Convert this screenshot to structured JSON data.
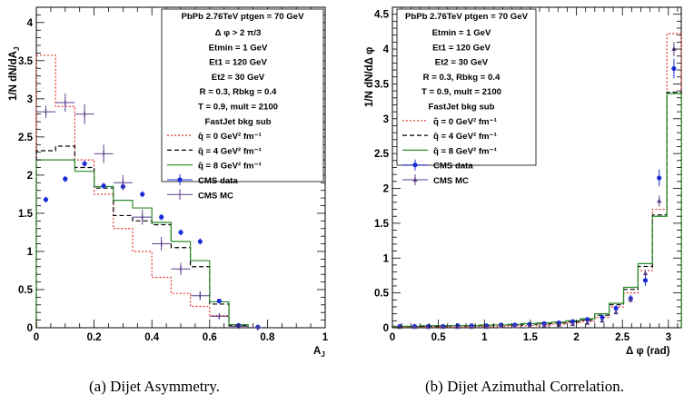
{
  "chart_data": [
    {
      "type": "line",
      "title": "",
      "xlabel": "A_J",
      "ylabel": "1/N dN/dA_J",
      "xlim": [
        0,
        1
      ],
      "ylim": [
        0,
        4.2
      ],
      "xticks": [
        "0",
        "0.2",
        "0.4",
        "0.6",
        "0.8",
        "1"
      ],
      "yticks": [
        "0",
        "0.5",
        "1",
        "1.5",
        "2",
        "2.5",
        "3",
        "3.5",
        "4"
      ],
      "caption": "(a) Dijet Asymmetry.",
      "legend": {
        "placement": "top-right",
        "header": "PbPb 2.76TeV ptgen = 70 GeV",
        "info": [
          "Δ φ > 2 π/3",
          "Etmin = 1 GeV",
          "Et1 = 120 GeV",
          "Et2 = 30 GeV",
          "R = 0.3, Rbkg = 0.4",
          "T = 0.9, mult = 2100",
          "FastJet bkg sub"
        ]
      },
      "bin_edges": [
        0,
        0.0667,
        0.1333,
        0.2,
        0.2667,
        0.3333,
        0.4,
        0.4667,
        0.5333,
        0.6,
        0.6667,
        0.7333,
        0.8
      ],
      "series": [
        {
          "name": "q̂ = 0 GeV² fm⁻¹",
          "style": "hist",
          "color": "#e8322d",
          "dash": "2,2",
          "values": [
            3.57,
            2.9,
            2.2,
            1.75,
            1.3,
            1.0,
            0.66,
            0.45,
            0.28,
            0.16,
            0.02,
            0.0
          ]
        },
        {
          "name": "q̂ = 4 GeV² fm⁻¹",
          "style": "hist",
          "color": "#000000",
          "dash": "5,3",
          "values": [
            2.32,
            2.38,
            2.1,
            1.83,
            1.47,
            1.4,
            1.35,
            1.05,
            0.8,
            0.31,
            0.03,
            0.0
          ]
        },
        {
          "name": "q̂ = 8 GeV² fm⁻¹",
          "style": "hist",
          "color": "#2a8a2a",
          "dash": "",
          "values": [
            2.2,
            2.2,
            2.05,
            1.85,
            1.67,
            1.57,
            1.38,
            1.13,
            0.88,
            0.34,
            0.04,
            0.0
          ]
        },
        {
          "name": "CMS data",
          "style": "points",
          "color": "#1a2cd6",
          "marker": "circle",
          "x": [
            0.033,
            0.1,
            0.167,
            0.233,
            0.3,
            0.367,
            0.433,
            0.5,
            0.567,
            0.633,
            0.7,
            0.767
          ],
          "y": [
            1.68,
            1.95,
            2.15,
            1.86,
            1.85,
            1.75,
            1.45,
            1.25,
            1.13,
            0.35,
            0.03,
            0.01
          ],
          "err": [
            0.04,
            0.04,
            0.04,
            0.04,
            0.04,
            0.04,
            0.04,
            0.04,
            0.04,
            0.03,
            0.01,
            0.01
          ]
        },
        {
          "name": "CMS MC",
          "style": "points",
          "color": "#5b3f8c",
          "marker": "cross",
          "x": [
            0.033,
            0.1,
            0.167,
            0.233,
            0.3,
            0.367,
            0.433,
            0.5,
            0.567,
            0.633,
            0.7,
            0.767
          ],
          "y": [
            2.83,
            2.95,
            2.8,
            2.28,
            1.9,
            1.45,
            1.1,
            0.77,
            0.42,
            0.15,
            0.02,
            0.0
          ],
          "err": [
            0.08,
            0.12,
            0.13,
            0.12,
            0.1,
            0.1,
            0.09,
            0.08,
            0.06,
            0.04,
            0.01,
            0.0
          ],
          "xerr": 0.033
        }
      ]
    },
    {
      "type": "line",
      "title": "",
      "xlabel": "Δ φ (rad)",
      "ylabel": "1/N dN/dΔ φ",
      "xlim": [
        0,
        3.14
      ],
      "ylim": [
        0,
        4.6
      ],
      "xticks": [
        "0",
        "0.5",
        "1",
        "1.5",
        "2",
        "2.5",
        "3"
      ],
      "yticks": [
        "0",
        "0.5",
        "1",
        "1.5",
        "2",
        "2.5",
        "3",
        "3.5",
        "4",
        "4.5"
      ],
      "caption": "(b) Dijet Azimuthal Correlation.",
      "legend": {
        "placement": "top-left",
        "header": "PbPb 2.76TeV ptgen = 70 GeV",
        "info": [
          "Etmin = 1 GeV",
          "Et1 = 120 GeV",
          "Et2 = 30 GeV",
          "R = 0.3, Rbkg = 0.4",
          "T = 0.9, mult = 2100",
          "FastJet bkg sub"
        ]
      },
      "bin_edges": [
        0,
        0.157,
        0.314,
        0.471,
        0.628,
        0.785,
        0.942,
        1.099,
        1.256,
        1.413,
        1.571,
        1.728,
        1.885,
        2.042,
        2.199,
        2.356,
        2.513,
        2.67,
        2.827,
        2.984,
        3.141
      ],
      "series": [
        {
          "name": "q̂ = 0 GeV² fm⁻¹",
          "style": "hist",
          "color": "#e8322d",
          "dash": "2,2",
          "values": [
            0.01,
            0.01,
            0.01,
            0.01,
            0.01,
            0.02,
            0.02,
            0.02,
            0.03,
            0.03,
            0.04,
            0.05,
            0.07,
            0.09,
            0.15,
            0.3,
            0.5,
            0.82,
            1.7,
            4.22
          ]
        },
        {
          "name": "q̂ = 4 GeV² fm⁻¹",
          "style": "hist",
          "color": "#000000",
          "dash": "5,3",
          "values": [
            0.02,
            0.02,
            0.02,
            0.02,
            0.03,
            0.03,
            0.03,
            0.04,
            0.04,
            0.05,
            0.06,
            0.07,
            0.09,
            0.11,
            0.18,
            0.33,
            0.55,
            0.88,
            1.62,
            3.38
          ]
        },
        {
          "name": "q̂ = 8 GeV² fm⁻¹",
          "style": "hist",
          "color": "#2a8a2a",
          "dash": "",
          "values": [
            0.02,
            0.02,
            0.03,
            0.03,
            0.03,
            0.03,
            0.04,
            0.04,
            0.05,
            0.06,
            0.07,
            0.08,
            0.1,
            0.13,
            0.2,
            0.35,
            0.58,
            0.92,
            1.6,
            3.36
          ]
        },
        {
          "name": "CMS data",
          "style": "points",
          "color": "#1a2cd6",
          "marker": "circle",
          "x": [
            0.08,
            0.24,
            0.39,
            0.55,
            0.71,
            0.86,
            1.02,
            1.18,
            1.33,
            1.49,
            1.65,
            1.81,
            1.96,
            2.12,
            2.28,
            2.43,
            2.59,
            2.75,
            2.9,
            3.06
          ],
          "y": [
            0.02,
            0.02,
            0.02,
            0.02,
            0.03,
            0.03,
            0.03,
            0.04,
            0.04,
            0.05,
            0.06,
            0.07,
            0.09,
            0.12,
            0.15,
            0.28,
            0.42,
            0.68,
            2.15,
            3.72
          ],
          "err": [
            0.02,
            0.02,
            0.02,
            0.02,
            0.02,
            0.02,
            0.02,
            0.02,
            0.02,
            0.02,
            0.02,
            0.02,
            0.02,
            0.03,
            0.03,
            0.04,
            0.05,
            0.08,
            0.12,
            0.14
          ]
        },
        {
          "name": "CMS MC",
          "style": "points",
          "color": "#5b3f8c",
          "marker": "triangle",
          "x": [
            0.08,
            0.24,
            0.39,
            0.55,
            0.71,
            0.86,
            1.02,
            1.18,
            1.33,
            1.49,
            1.65,
            1.81,
            1.96,
            2.12,
            2.28,
            2.43,
            2.59,
            2.75,
            2.9,
            3.06
          ],
          "y": [
            0.01,
            0.01,
            0.01,
            0.01,
            0.01,
            0.01,
            0.01,
            0.02,
            0.02,
            0.02,
            0.03,
            0.04,
            0.05,
            0.07,
            0.1,
            0.22,
            0.4,
            0.78,
            1.82,
            4.0
          ],
          "err": [
            0.01,
            0.01,
            0.01,
            0.01,
            0.01,
            0.01,
            0.01,
            0.01,
            0.01,
            0.01,
            0.01,
            0.01,
            0.01,
            0.02,
            0.02,
            0.03,
            0.04,
            0.05,
            0.08,
            0.1
          ]
        }
      ]
    }
  ]
}
